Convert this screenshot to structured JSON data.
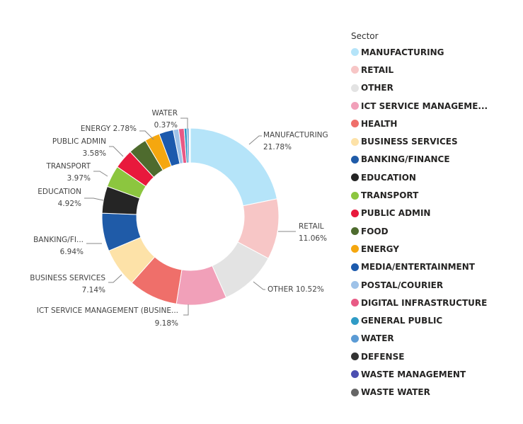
{
  "chart_data": {
    "type": "pie",
    "donut": true,
    "legend_title": "Sector",
    "legend_position": "right",
    "slices": [
      {
        "name": "MANUFACTURING",
        "value": 21.78,
        "label_name": "MANUFACTURING",
        "label_value": "21.78%",
        "color": "#b5e4f9"
      },
      {
        "name": "RETAIL",
        "value": 11.06,
        "label_name": "RETAIL",
        "label_value": "11.06%",
        "color": "#f7c6c6"
      },
      {
        "name": "OTHER",
        "value": 10.52,
        "label_name": "OTHER",
        "label_value": "10.52%",
        "color": "#e3e3e3"
      },
      {
        "name": "ICT SERVICE MANAGEME...",
        "value": 9.18,
        "label_name": "ICT SERVICE MANAGEMENT (BUSINE...",
        "label_value": "9.18%",
        "color": "#f1a0b9"
      },
      {
        "name": "HEALTH",
        "value": 9.0,
        "label_name": "",
        "label_value": "",
        "color": "#ef6f6a"
      },
      {
        "name": "BUSINESS SERVICES",
        "value": 7.14,
        "label_name": "BUSINESS SERVICES",
        "label_value": "7.14%",
        "color": "#fde2a8"
      },
      {
        "name": "BANKING/FINANCE",
        "value": 6.94,
        "label_name": "BANKING/FI...",
        "label_value": "6.94%",
        "color": "#1f5ba8"
      },
      {
        "name": "EDUCATION",
        "value": 4.92,
        "label_name": "EDUCATION",
        "label_value": "4.92%",
        "color": "#252525"
      },
      {
        "name": "TRANSPORT",
        "value": 3.97,
        "label_name": "TRANSPORT",
        "label_value": "3.97%",
        "color": "#8cc63f"
      },
      {
        "name": "PUBLIC ADMIN",
        "value": 3.58,
        "label_name": "PUBLIC ADMIN",
        "label_value": "3.58%",
        "color": "#e8193c"
      },
      {
        "name": "FOOD",
        "value": 3.4,
        "label_name": "",
        "label_value": "",
        "color": "#4e6b2e"
      },
      {
        "name": "ENERGY",
        "value": 2.78,
        "label_name": "ENERGY",
        "label_value": "2.78%",
        "color": "#f5a70f"
      },
      {
        "name": "MEDIA/ENTERTAINMENT",
        "value": 2.6,
        "label_name": "",
        "label_value": "",
        "color": "#1c5aad"
      },
      {
        "name": "POSTAL/COURIER",
        "value": 1.0,
        "label_name": "",
        "label_value": "",
        "color": "#9ec2e8"
      },
      {
        "name": "DIGITAL INFRASTRUCTURE",
        "value": 1.0,
        "label_name": "",
        "label_value": "",
        "color": "#e85a85"
      },
      {
        "name": "GENERAL PUBLIC",
        "value": 0.5,
        "label_name": "",
        "label_value": "",
        "color": "#2f9bc6"
      },
      {
        "name": "WATER",
        "value": 0.37,
        "label_name": "WATER",
        "label_value": "0.37%",
        "color": "#5b9bd5"
      },
      {
        "name": "DEFENSE",
        "value": 0.1,
        "label_name": "",
        "label_value": "",
        "color": "#333333"
      },
      {
        "name": "WASTE MANAGEMENT",
        "value": 0.1,
        "label_name": "",
        "label_value": "",
        "color": "#4b4fb0"
      },
      {
        "name": "WASTE WATER",
        "value": 0.06,
        "label_name": "",
        "label_value": "",
        "color": "#666666"
      }
    ]
  }
}
